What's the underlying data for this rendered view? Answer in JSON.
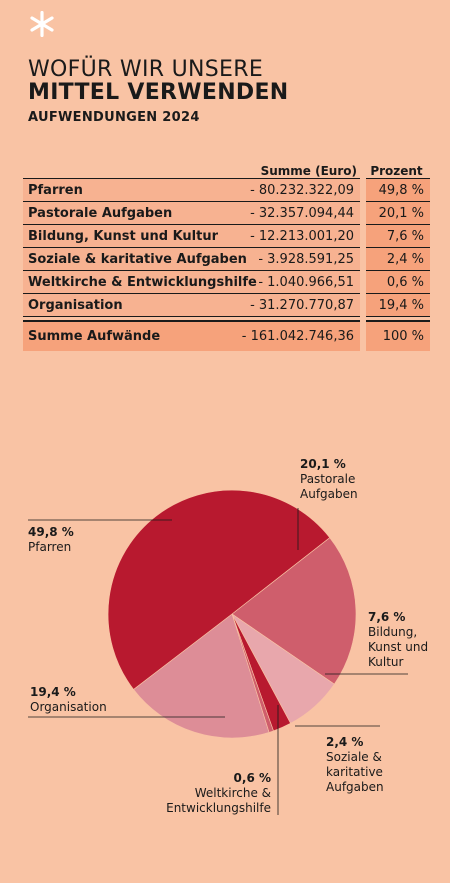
{
  "header": {
    "title_line1": "WOFÜR WIR UNSERE",
    "title_line2": "MITTEL VERWENDEN",
    "subtitle": "AUFWENDUNGEN 2024"
  },
  "colors": {
    "background": "#f9c3a4",
    "table_cell": "#f7b291",
    "table_pct_cell": "#f6a27b"
  },
  "table": {
    "col_amount": "Summe (Euro)",
    "col_pct": "Prozent",
    "rows": [
      {
        "label": "Pfarren",
        "amount": "- 80.232.322,09",
        "pct": "49,8 %"
      },
      {
        "label": "Pastorale Aufgaben",
        "amount": "- 32.357.094,44",
        "pct": "20,1 %"
      },
      {
        "label": "Bildung, Kunst und Kultur",
        "amount": "- 12.213.001,20",
        "pct": "7,6 %"
      },
      {
        "label": "Soziale & karitative Aufgaben",
        "amount": "- 3.928.591,25",
        "pct": "2,4 %"
      },
      {
        "label": "Weltkirche & Entwicklungshilfe",
        "amount": "- 1.040.966,51",
        "pct": "0,6 %"
      },
      {
        "label": "Organisation",
        "amount": "- 31.270.770,87",
        "pct": "19,4 %"
      }
    ],
    "total": {
      "label": "Summe Aufwände",
      "amount": "- 161.042.746,36",
      "pct": "100 %"
    }
  },
  "chart_data": {
    "type": "pie",
    "unit": "%",
    "slices": [
      {
        "pct_label": "20,1 %",
        "lines": [
          "Pastorale",
          "Aufgaben"
        ],
        "value": 20.1,
        "color": "#cf5e6c"
      },
      {
        "pct_label": "7,6 %",
        "lines": [
          "Bildung,",
          "Kunst und",
          "Kultur"
        ],
        "value": 7.6,
        "color": "#e8a7ac"
      },
      {
        "pct_label": "2,4 %",
        "lines": [
          "Soziale &",
          "karitative",
          "Aufgaben"
        ],
        "value": 2.4,
        "color": "#b8192f"
      },
      {
        "pct_label": "0,6 %",
        "lines": [
          "Weltkirche &",
          "Entwicklungshilfe"
        ],
        "value": 0.6,
        "color": "#cf5e6c"
      },
      {
        "pct_label": "19,4 %",
        "lines": [
          "Organisation"
        ],
        "value": 19.4,
        "color": "#dd8d97"
      },
      {
        "pct_label": "49,8 %",
        "lines": [
          "Pfarren"
        ],
        "value": 49.8,
        "color": "#b8192f"
      }
    ]
  }
}
